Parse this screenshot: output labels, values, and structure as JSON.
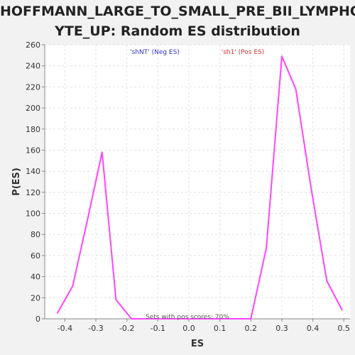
{
  "chart_data": {
    "type": "line",
    "title_line1": "HOFFMANN_LARGE_TO_SMALL_PRE_BII_LYMPHOC",
    "title_line2": "YTE_UP: Random ES distribution",
    "xlabel": "ES",
    "ylabel": "P(ES)",
    "xlim": [
      -0.465,
      0.52
    ],
    "ylim": [
      0,
      260
    ],
    "x_ticks": [
      -0.4,
      -0.3,
      -0.2,
      -0.1,
      0.0,
      0.1,
      0.2,
      0.3,
      0.4,
      0.5
    ],
    "x_tick_labels": [
      "-0.4",
      "-0.3",
      "-0.2",
      "-0.1",
      "0.0",
      "0.1",
      "0.2",
      "0.3",
      "0.4",
      "0.5"
    ],
    "y_ticks": [
      0,
      20,
      40,
      60,
      80,
      100,
      120,
      140,
      160,
      180,
      200,
      220,
      240,
      260
    ],
    "grid": true,
    "line_color": "#ff44ff",
    "series": [
      {
        "x": [
          -0.425,
          -0.375,
          -0.33,
          -0.28,
          -0.235,
          -0.185,
          -0.13,
          -0.08,
          -0.03,
          0.02,
          0.07,
          0.12,
          0.17,
          0.2,
          0.25,
          0.3,
          0.345,
          0.395,
          0.445,
          0.495
        ],
        "values": [
          5,
          31,
          90,
          158,
          18,
          0,
          0,
          0,
          0,
          0,
          0,
          0,
          0,
          0,
          67,
          249,
          218,
          123,
          36,
          8
        ]
      }
    ],
    "legend": [
      {
        "label": "'shNT' (Neg ES)",
        "color": "#3333cc"
      },
      {
        "label": "'sh1' (Pos ES)",
        "color": "#dd3333"
      }
    ],
    "annotation": "Sets with pos scores: 70%"
  }
}
